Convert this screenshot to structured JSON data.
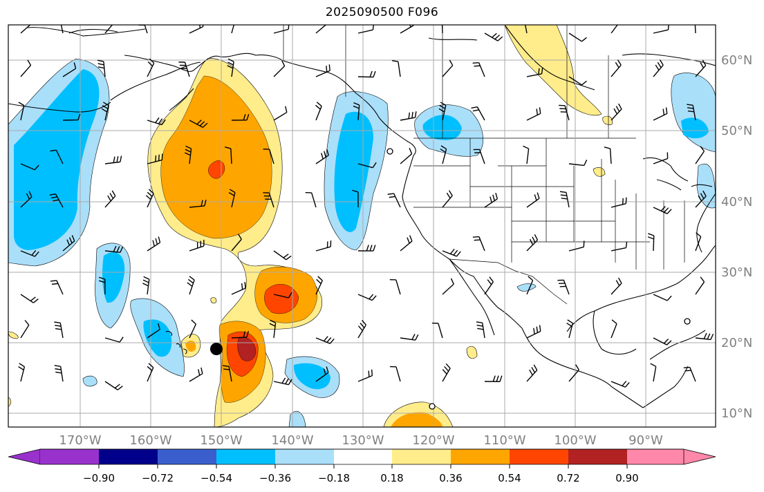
{
  "figure": {
    "title": "2025090500 F096"
  },
  "map": {
    "projection": "Mercator",
    "lon_range": [
      -180,
      -80
    ],
    "lat_range": [
      8,
      65
    ],
    "lon_labels": [
      "170°W",
      "160°W",
      "150°W",
      "140°W",
      "130°W",
      "120°W",
      "110°W",
      "100°W",
      "90°W"
    ],
    "lat_labels": [
      "10°N",
      "20°N",
      "30°N",
      "40°N",
      "50°N",
      "60°N"
    ],
    "grid": true,
    "barbs_shown": true
  },
  "colorbar": {
    "levels": [
      -0.9,
      -0.72,
      -0.54,
      -0.36,
      -0.18,
      0.18,
      0.36,
      0.54,
      0.72,
      0.9
    ],
    "tick_labels": [
      "−0.90",
      "−0.72",
      "−0.54",
      "−0.36",
      "−0.18",
      "0.18",
      "0.36",
      "0.54",
      "0.72",
      "0.90"
    ],
    "colors": [
      "#9932cc",
      "#00008b",
      "#3a5fcd",
      "#00bfff",
      "#aadffa",
      "#ffffff",
      "#ffec8b",
      "#ffa500",
      "#ff4500",
      "#b22222",
      "#ff88aa"
    ],
    "extend": "both"
  },
  "colors": {
    "land_outline": "#000000",
    "grid": "#aaaaaa",
    "tick_label": "#808080"
  },
  "markers": [
    {
      "name": "large-dot",
      "lon": -150.5,
      "lat": 19.0,
      "filled": true
    },
    {
      "name": "small-circle",
      "lon": -125.7,
      "lat": 46.5,
      "filled": false
    },
    {
      "name": "small-circle",
      "lon": -120.2,
      "lat": 10.7,
      "filled": false
    },
    {
      "name": "small-circle",
      "lon": -84.0,
      "lat": 23.0,
      "filled": false
    }
  ]
}
